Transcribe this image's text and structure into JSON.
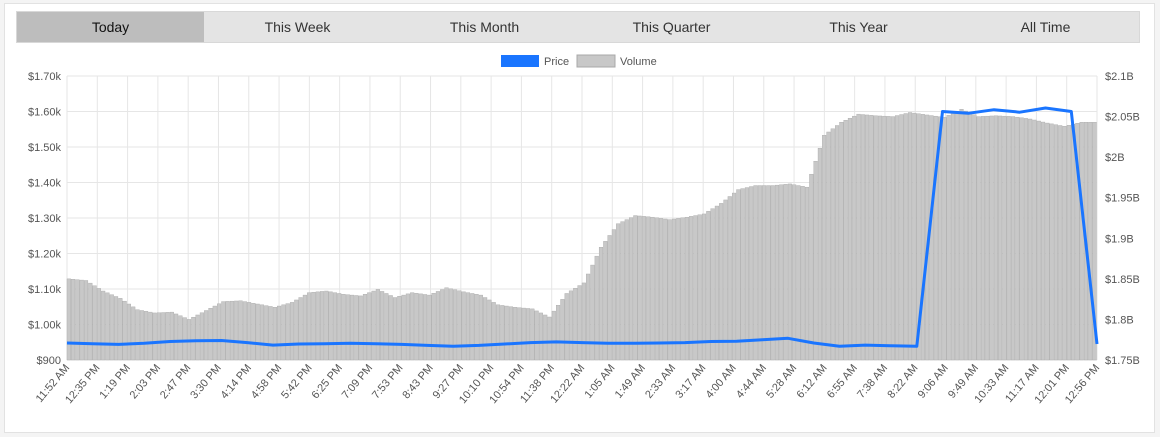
{
  "tabs": [
    {
      "label": "Today",
      "active": true
    },
    {
      "label": "This Week",
      "active": false
    },
    {
      "label": "This Month",
      "active": false
    },
    {
      "label": "This Quarter",
      "active": false
    },
    {
      "label": "This Year",
      "active": false
    },
    {
      "label": "All Time",
      "active": false
    }
  ],
  "chart_data": {
    "type": "bar-line",
    "title": "",
    "legend": {
      "placement": "top-center",
      "entries": [
        "Price",
        "Volume"
      ]
    },
    "colors": {
      "price": "#1a75ff",
      "volume": "#c8c8c8",
      "volume_edge": "#a8a8a8",
      "grid": "#e6e6e6"
    },
    "grid": true,
    "y_left": {
      "min": 900,
      "max": 1700,
      "ticks": [
        900,
        1000,
        1100,
        1200,
        1300,
        1400,
        1500,
        1600,
        1700
      ],
      "tick_labels": [
        "$900",
        "$1.00k",
        "$1.10k",
        "$1.20k",
        "$1.30k",
        "$1.40k",
        "$1.50k",
        "$1.60k",
        "$1.70k"
      ]
    },
    "y_right": {
      "min": 1.75,
      "max": 2.1,
      "ticks": [
        1.75,
        1.8,
        1.85,
        1.9,
        1.95,
        2.0,
        2.05,
        2.1
      ],
      "tick_labels": [
        "$1.75B",
        "$1.8B",
        "$1.85B",
        "$1.9B",
        "$1.95B",
        "$2B",
        "$2.05B",
        "$2.1B"
      ]
    },
    "x_tick_labels": [
      "11:52 AM",
      "12:35 PM",
      "1:19 PM",
      "2:03 PM",
      "2:47 PM",
      "3:30 PM",
      "4:14 PM",
      "4:58 PM",
      "5:42 PM",
      "6:25 PM",
      "7:09 PM",
      "7:53 PM",
      "8:43 PM",
      "9:27 PM",
      "10:10 PM",
      "10:54 PM",
      "11:38 PM",
      "12:22 AM",
      "1:05 AM",
      "1:49 AM",
      "2:33 AM",
      "3:17 AM",
      "4:00 AM",
      "4:44 AM",
      "5:28 AM",
      "6:12 AM",
      "6:55 AM",
      "7:38 AM",
      "8:22 AM",
      "9:06 AM",
      "9:49 AM",
      "10:33 AM",
      "11:17 AM",
      "12:01 PM",
      "12:56 PM"
    ],
    "series": [
      {
        "name": "Volume",
        "axis": "right",
        "values": [
          1.85,
          1.848,
          1.835,
          1.826,
          1.812,
          1.808,
          1.809,
          1.8,
          1.811,
          1.822,
          1.823,
          1.819,
          1.815,
          1.821,
          1.833,
          1.835,
          1.831,
          1.829,
          1.837,
          1.827,
          1.833,
          1.83,
          1.839,
          1.834,
          1.83,
          1.818,
          1.815,
          1.813,
          1.803,
          1.832,
          1.845,
          1.889,
          1.918,
          1.928,
          1.926,
          1.923,
          1.926,
          1.93,
          1.943,
          1.96,
          1.965,
          1.965,
          1.967,
          1.963,
          2.027,
          2.043,
          2.053,
          2.051,
          2.05,
          2.055,
          2.052,
          2.049,
          2.059,
          2.05,
          2.051,
          2.05,
          2.047,
          2.042,
          2.038,
          2.043
        ]
      },
      {
        "name": "Price",
        "axis": "left",
        "values": [
          948,
          946,
          944,
          947,
          952,
          954,
          955,
          949,
          942,
          945,
          946,
          947,
          946,
          944,
          941,
          939,
          941,
          945,
          949,
          951,
          949,
          947,
          947,
          948,
          949,
          952,
          953,
          957,
          961,
          948,
          939,
          942,
          940,
          939,
          1600,
          1595,
          1605,
          1598,
          1610,
          1600,
          945
        ]
      }
    ]
  }
}
